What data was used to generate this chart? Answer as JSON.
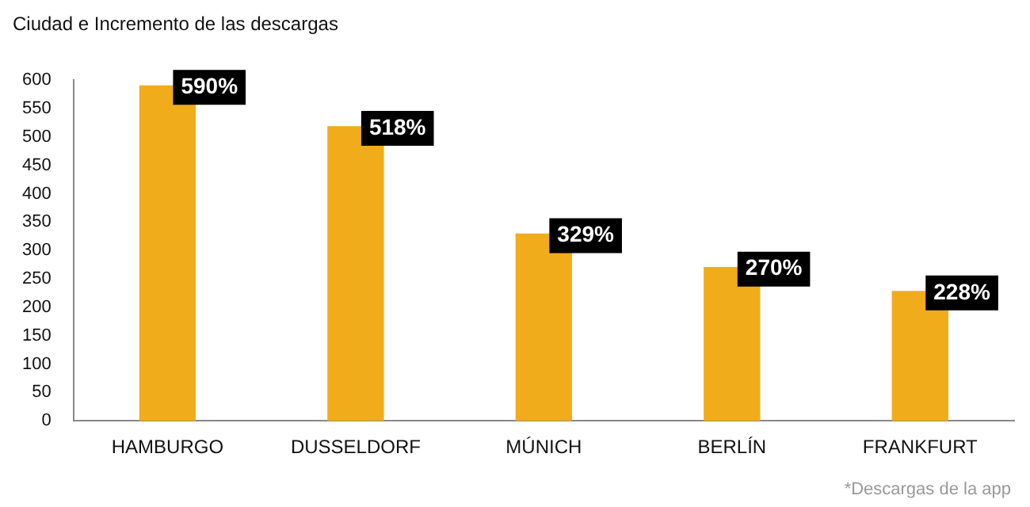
{
  "chart_data": {
    "type": "bar",
    "title": "Ciudad e Incremento de las descargas",
    "categories": [
      "HAMBURGO",
      "DUSSELDORF",
      "MÚNICH",
      "BERLÍN",
      "FRANKFURT"
    ],
    "values": [
      590,
      518,
      329,
      270,
      228
    ],
    "value_labels": [
      "590%",
      "518%",
      "329%",
      "270%",
      "228%"
    ],
    "color": "#f0ac1a",
    "ylim": [
      0,
      600
    ],
    "yticks": [
      0,
      50,
      100,
      150,
      200,
      250,
      300,
      350,
      400,
      450,
      500,
      550,
      600
    ],
    "grid": false,
    "legend": false,
    "annotations": [
      "*Descargas de la app"
    ]
  }
}
